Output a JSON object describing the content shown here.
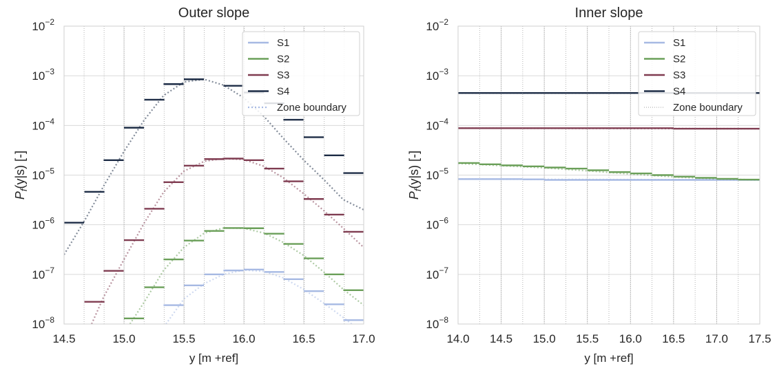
{
  "chart_data": [
    {
      "type": "line",
      "title": "Outer slope",
      "xlabel": "y [m +ref]",
      "ylabel": "P_f(y|s) [-]",
      "yscale": "log",
      "xlim": [
        14.5,
        17.0
      ],
      "ylim": [
        1e-08,
        0.01
      ],
      "xticks": [
        "14.5",
        "15.0",
        "15.5",
        "16.0",
        "16.5",
        "17.0"
      ],
      "yticks": [
        "-8",
        "-7",
        "-6",
        "-5",
        "-4",
        "-3",
        "-2"
      ],
      "grid": true,
      "legend_position": "top-right",
      "zone_width": 0.167,
      "series": [
        {
          "name": "S1",
          "color": "#a6b9e3",
          "steps": [
            [
              15.33,
              2.4e-08
            ],
            [
              15.5,
              6e-08
            ],
            [
              15.67,
              1e-07
            ],
            [
              15.83,
              1.2e-07
            ],
            [
              16.0,
              1.25e-07
            ],
            [
              16.17,
              1.12e-07
            ],
            [
              16.33,
              8e-08
            ],
            [
              16.5,
              4.6e-08
            ],
            [
              16.67,
              2.5e-08
            ],
            [
              16.83,
              1.2e-08
            ]
          ],
          "curve": [
            [
              15.35,
              1e-08
            ],
            [
              15.5,
              3.2e-08
            ],
            [
              15.67,
              6.5e-08
            ],
            [
              15.83,
              1e-07
            ],
            [
              16.0,
              1.22e-07
            ],
            [
              16.17,
              1.15e-07
            ],
            [
              16.33,
              8.5e-08
            ],
            [
              16.5,
              5e-08
            ],
            [
              16.67,
              2.6e-08
            ],
            [
              16.83,
              1.35e-08
            ],
            [
              16.9,
              1e-08
            ]
          ]
        },
        {
          "name": "S2",
          "color": "#6a9f58",
          "steps": [
            [
              15.0,
              1.3e-08
            ],
            [
              15.17,
              5.5e-08
            ],
            [
              15.33,
              2e-07
            ],
            [
              15.5,
              4.8e-07
            ],
            [
              15.67,
              7.5e-07
            ],
            [
              15.83,
              8.6e-07
            ],
            [
              16.0,
              8.5e-07
            ],
            [
              16.17,
              6.6e-07
            ],
            [
              16.33,
              4.1e-07
            ],
            [
              16.5,
              2.1e-07
            ],
            [
              16.67,
              1e-07
            ],
            [
              16.83,
              4.8e-08
            ]
          ],
          "curve": [
            [
              15.05,
              1e-08
            ],
            [
              15.17,
              2.8e-08
            ],
            [
              15.33,
              1.2e-07
            ],
            [
              15.5,
              3.5e-07
            ],
            [
              15.67,
              6.8e-07
            ],
            [
              15.83,
              8.6e-07
            ],
            [
              16.0,
              8.5e-07
            ],
            [
              16.17,
              6.8e-07
            ],
            [
              16.33,
              4.4e-07
            ],
            [
              16.5,
              2.4e-07
            ],
            [
              16.67,
              1.1e-07
            ],
            [
              16.83,
              5e-08
            ],
            [
              17.0,
              2.4e-08
            ]
          ]
        },
        {
          "name": "S3",
          "color": "#7f3b50",
          "steps": [
            [
              14.67,
              2.8e-08
            ],
            [
              14.83,
              1.18e-07
            ],
            [
              15.0,
              4.9e-07
            ],
            [
              15.17,
              2.1e-06
            ],
            [
              15.33,
              7.2e-06
            ],
            [
              15.5,
              1.55e-05
            ],
            [
              15.67,
              2.1e-05
            ],
            [
              15.83,
              2.15e-05
            ],
            [
              16.0,
              2e-05
            ],
            [
              16.17,
              1.35e-05
            ],
            [
              16.33,
              7.5e-06
            ],
            [
              16.5,
              3.3e-06
            ],
            [
              16.67,
              1.6e-06
            ],
            [
              16.83,
              7.2e-07
            ]
          ],
          "curve": [
            [
              14.73,
              1e-08
            ],
            [
              14.83,
              3.5e-08
            ],
            [
              15.0,
              2e-07
            ],
            [
              15.17,
              1.1e-06
            ],
            [
              15.33,
              4.5e-06
            ],
            [
              15.5,
              1.2e-05
            ],
            [
              15.67,
              1.9e-05
            ],
            [
              15.83,
              2.15e-05
            ],
            [
              16.0,
              2.05e-05
            ],
            [
              16.17,
              1.5e-05
            ],
            [
              16.33,
              8.8e-06
            ],
            [
              16.5,
              4.2e-06
            ],
            [
              16.67,
              1.9e-06
            ],
            [
              16.83,
              8.5e-07
            ],
            [
              17.0,
              3.5e-07
            ]
          ]
        },
        {
          "name": "S4",
          "color": "#1c2b45",
          "steps": [
            [
              14.5,
              1.1e-06
            ],
            [
              14.67,
              4.6e-06
            ],
            [
              14.83,
              2e-05
            ],
            [
              15.0,
              9e-05
            ],
            [
              15.17,
              0.00033
            ],
            [
              15.33,
              0.00068
            ],
            [
              15.5,
              0.00085
            ],
            [
              15.83,
              0.00063
            ],
            [
              16.0,
              0.00046
            ],
            [
              16.17,
              0.00028
            ],
            [
              16.33,
              0.00013
            ],
            [
              16.5,
              5.8e-05
            ],
            [
              16.67,
              2.5e-05
            ],
            [
              16.83,
              1.1e-05
            ]
          ],
          "curve": [
            [
              14.5,
              2.5e-07
            ],
            [
              14.67,
              1.2e-06
            ],
            [
              14.83,
              6e-06
            ],
            [
              15.0,
              3e-05
            ],
            [
              15.17,
              0.00013
            ],
            [
              15.33,
              0.0004
            ],
            [
              15.5,
              0.00075
            ],
            [
              15.67,
              0.00085
            ],
            [
              15.83,
              0.00065
            ],
            [
              16.0,
              0.00036
            ],
            [
              16.17,
              0.00015
            ],
            [
              16.33,
              5.5e-05
            ],
            [
              16.5,
              2e-05
            ],
            [
              16.67,
              8e-06
            ],
            [
              16.83,
              3.2e-06
            ],
            [
              17.0,
              2e-06
            ]
          ]
        }
      ]
    },
    {
      "type": "line",
      "title": "Inner slope",
      "xlabel": "y [m +ref]",
      "ylabel": "P_f(y|s) [-]",
      "yscale": "log",
      "xlim": [
        14.0,
        17.5
      ],
      "ylim": [
        1e-08,
        0.01
      ],
      "xticks": [
        "14.0",
        "14.5",
        "15.0",
        "15.5",
        "16.0",
        "16.5",
        "17.0",
        "17.5"
      ],
      "yticks": [
        "-8",
        "-7",
        "-6",
        "-5",
        "-4",
        "-3",
        "-2"
      ],
      "grid": true,
      "legend_position": "top-right",
      "zone_width": 0.25,
      "series": [
        {
          "name": "S1",
          "color": "#a6b9e3",
          "steps": [
            [
              14.0,
              8.3e-06
            ],
            [
              14.25,
              8.3e-06
            ],
            [
              14.5,
              8.3e-06
            ],
            [
              14.75,
              8.2e-06
            ],
            [
              15.0,
              8e-06
            ],
            [
              15.25,
              8e-06
            ],
            [
              15.5,
              8e-06
            ],
            [
              15.75,
              8e-06
            ],
            [
              16.0,
              8e-06
            ],
            [
              16.25,
              8e-06
            ],
            [
              16.5,
              8e-06
            ],
            [
              16.75,
              8e-06
            ],
            [
              17.0,
              8e-06
            ],
            [
              17.25,
              8e-06
            ]
          ],
          "curve": [
            [
              14.0,
              8.3e-06
            ],
            [
              17.5,
              8e-06
            ]
          ]
        },
        {
          "name": "S2",
          "color": "#6a9f58",
          "steps": [
            [
              14.0,
              1.75e-05
            ],
            [
              14.25,
              1.65e-05
            ],
            [
              14.5,
              1.57e-05
            ],
            [
              14.75,
              1.5e-05
            ],
            [
              15.0,
              1.42e-05
            ],
            [
              15.25,
              1.35e-05
            ],
            [
              15.5,
              1.25e-05
            ],
            [
              15.75,
              1.15e-05
            ],
            [
              16.0,
              1.08e-05
            ],
            [
              16.25,
              1e-05
            ],
            [
              16.5,
              9.3e-06
            ],
            [
              16.75,
              8.8e-06
            ],
            [
              17.0,
              8.4e-06
            ],
            [
              17.25,
              8.1e-06
            ]
          ],
          "curve": [
            [
              14.0,
              1.72e-05
            ],
            [
              14.5,
              1.55e-05
            ],
            [
              15.0,
              1.4e-05
            ],
            [
              15.5,
              1.22e-05
            ],
            [
              16.0,
              1.05e-05
            ],
            [
              16.5,
              9.2e-06
            ],
            [
              17.0,
              8.4e-06
            ],
            [
              17.5,
              8e-06
            ]
          ]
        },
        {
          "name": "S3",
          "color": "#7f3b50",
          "steps": [
            [
              14.0,
              8.8e-05
            ],
            [
              14.25,
              8.8e-05
            ],
            [
              14.5,
              8.8e-05
            ],
            [
              14.75,
              8.8e-05
            ],
            [
              15.0,
              8.8e-05
            ],
            [
              15.25,
              8.8e-05
            ],
            [
              15.5,
              8.8e-05
            ],
            [
              15.75,
              8.8e-05
            ],
            [
              16.0,
              8.8e-05
            ],
            [
              16.25,
              8.8e-05
            ],
            [
              16.5,
              8.6e-05
            ],
            [
              16.75,
              8.6e-05
            ],
            [
              17.0,
              8.6e-05
            ],
            [
              17.25,
              8.6e-05
            ]
          ],
          "curve": [
            [
              14.0,
              8.8e-05
            ],
            [
              17.5,
              8.6e-05
            ]
          ]
        },
        {
          "name": "S4",
          "color": "#1c2b45",
          "steps": [
            [
              14.0,
              0.00045
            ],
            [
              14.25,
              0.00045
            ],
            [
              14.5,
              0.00045
            ],
            [
              14.75,
              0.00045
            ],
            [
              15.0,
              0.00045
            ],
            [
              15.25,
              0.00045
            ],
            [
              15.5,
              0.00045
            ],
            [
              15.75,
              0.00045
            ],
            [
              16.0,
              0.00045
            ],
            [
              16.25,
              0.00045
            ],
            [
              16.5,
              0.00045
            ],
            [
              16.75,
              0.00045
            ],
            [
              17.0,
              0.00045
            ],
            [
              17.25,
              0.00045
            ]
          ],
          "curve": [
            [
              14.0,
              0.00045
            ],
            [
              17.5,
              0.00045
            ]
          ]
        }
      ],
      "legend_extra": "Zone boundary"
    }
  ]
}
